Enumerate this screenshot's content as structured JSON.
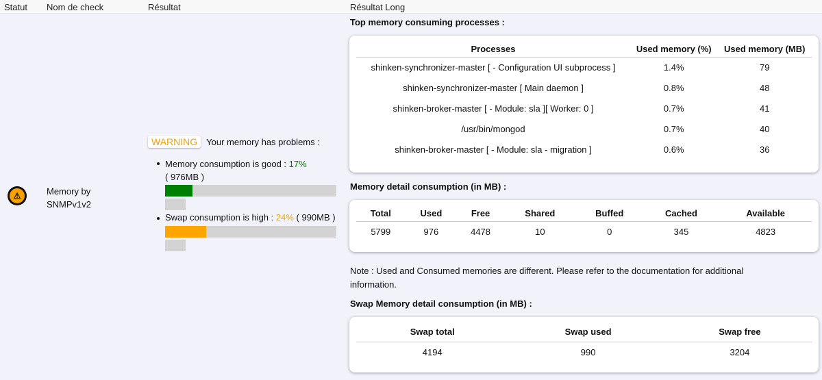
{
  "headers": {
    "status": "Statut",
    "name": "Nom de check",
    "result": "Résultat",
    "long": "Résultat Long"
  },
  "row": {
    "status_icon": "warning-icon",
    "status_color": "#f7a000",
    "name": "Memory by SNMPv1v2",
    "result": {
      "badge": "WARNING",
      "message": "Your memory has problems :",
      "memory": {
        "label": "Memory consumption is good : ",
        "percent": "17%",
        "value": "( 976MB )",
        "fill": 17,
        "color": "#008000"
      },
      "swap": {
        "label": "Swap consumption is high : ",
        "percent": "24%",
        "value": " ( 990MB )",
        "fill": 24,
        "color": "#ffa500"
      }
    },
    "long": {
      "top_title": "Top memory consuming processes :",
      "processes": {
        "headers": [
          "Processes",
          "Used memory (%)",
          "Used memory (MB)"
        ],
        "rows": [
          [
            "shinken-synchronizer-master [ - Configuration UI subprocess ]",
            "1.4%",
            "79"
          ],
          [
            "shinken-synchronizer-master [ Main daemon ]",
            "0.8%",
            "48"
          ],
          [
            "shinken-broker-master [ - Module: sla ][ Worker: 0 ]",
            "0.7%",
            "41"
          ],
          [
            "/usr/bin/mongod",
            "0.7%",
            "40"
          ],
          [
            "shinken-broker-master [ - Module: sla - migration ]",
            "0.6%",
            "36"
          ]
        ]
      },
      "detail_title": "Memory detail consumption (in MB) :",
      "detail": {
        "headers": [
          "Total",
          "Used",
          "Free",
          "Shared",
          "Buffed",
          "Cached",
          "Available"
        ],
        "values": [
          "5799",
          "976",
          "4478",
          "10",
          "0",
          "345",
          "4823"
        ]
      },
      "note": "Note : Used and Consumed memories are different. Please refer to the documentation for additional information.",
      "swap_title": "Swap Memory detail consumption (in MB) :",
      "swap": {
        "headers": [
          "Swap total",
          "Swap used",
          "Swap free"
        ],
        "values": [
          "4194",
          "990",
          "3204"
        ]
      }
    }
  }
}
